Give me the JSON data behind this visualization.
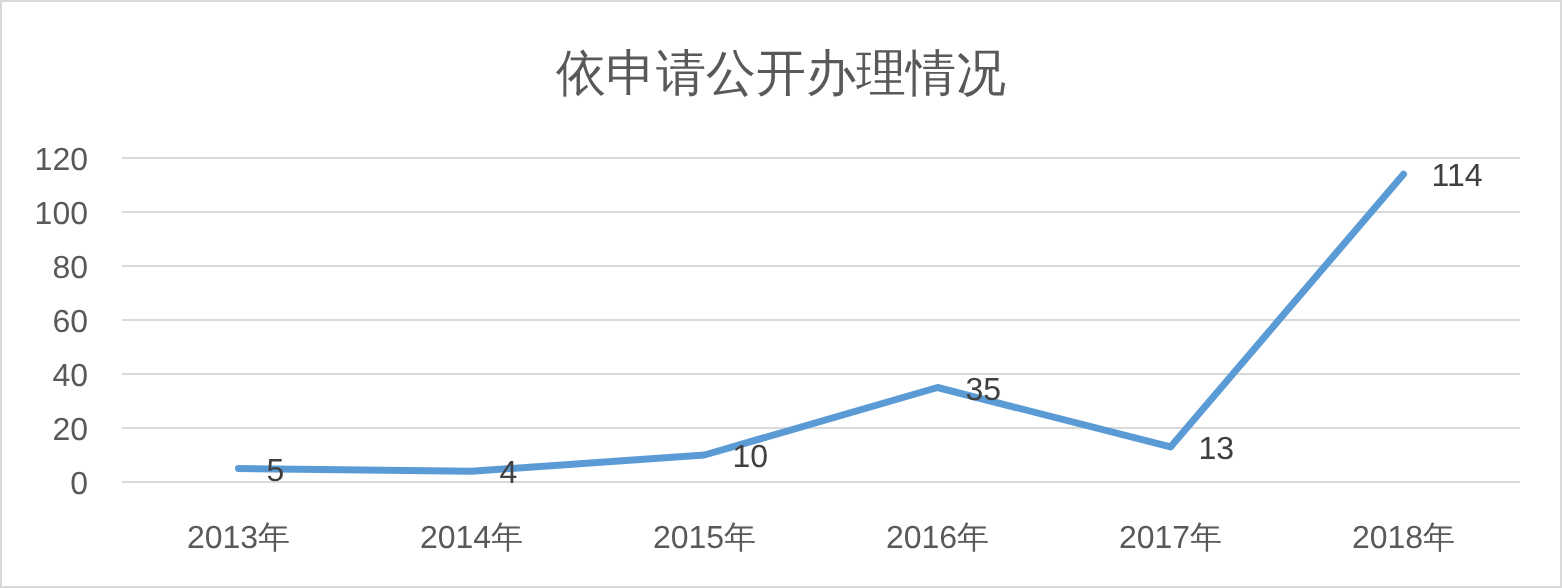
{
  "chart_data": {
    "type": "line",
    "title": "依申请公开办理情况",
    "categories": [
      "2013年",
      "2014年",
      "2015年",
      "2016年",
      "2017年",
      "2018年"
    ],
    "series": [
      {
        "color": "#5b9bd5",
        "values": [
          5,
          4,
          10,
          35,
          13,
          114
        ]
      }
    ],
    "ylim": [
      0,
      120
    ],
    "yticks": [
      0,
      20,
      40,
      60,
      80,
      100,
      120
    ],
    "grid": "y",
    "data_labels": true
  }
}
